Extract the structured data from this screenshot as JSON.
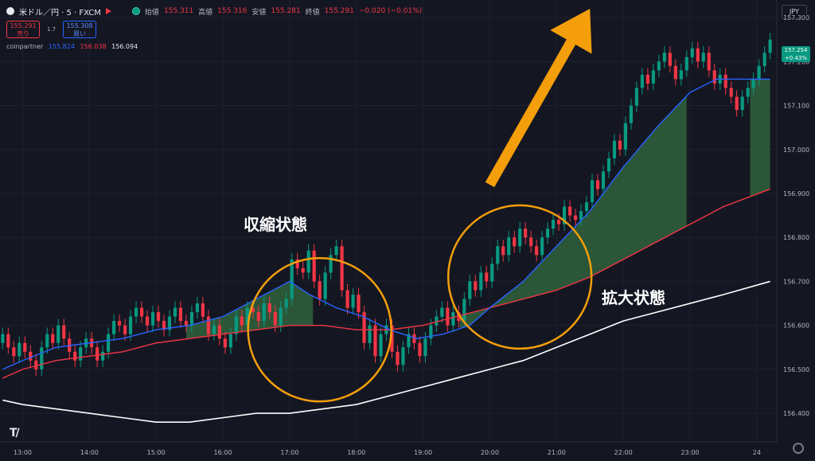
{
  "header": {
    "symbol": "米ドル／円 · 5 · FXCM",
    "open_label": "始値",
    "open": "155.311",
    "high_label": "高値",
    "high": "155.316",
    "low_label": "安値",
    "low": "155.281",
    "close_label": "終値",
    "close": "155.291",
    "change": "−0.020 (−0.01%)"
  },
  "trade": {
    "sell_price": "155.291",
    "sell_label": "売り",
    "spread": "1.7",
    "buy_price": "155.308",
    "buy_label": "買い"
  },
  "indicator": {
    "name": "coinpartner",
    "v1": "155.824",
    "v2": "156.038",
    "v3": "156.094"
  },
  "currency_button": "JPY",
  "last_price": {
    "value": "157.254",
    "change": "+0.43%"
  },
  "annotations": {
    "contraction": "収縮状態",
    "expansion": "拡大状態"
  },
  "colors": {
    "background": "#141722",
    "up": "#089981",
    "down": "#f23645",
    "ma_fast": "#2962ff",
    "ma_mid": "#f23645",
    "ma_slow": "#ffffff",
    "fill": "#2e5d3b",
    "highlight": "#f59e0b"
  },
  "icons": [
    "tradingview-logo-icon",
    "settings-icon",
    "status-dot-icon",
    "flag-icon",
    "arrow-up-icon"
  ],
  "chart_data": {
    "type": "candlestick",
    "y_ticks": [
      "157.300",
      "157.200",
      "157.100",
      "157.000",
      "156.900",
      "156.800",
      "156.700",
      "156.600",
      "156.500",
      "156.400"
    ],
    "ylim": [
      156.335,
      157.34
    ],
    "x_ticks": [
      "13:00",
      "14:00",
      "15:00",
      "16:00",
      "17:00",
      "18:00",
      "19:00",
      "20:00",
      "21:00",
      "22:00",
      "23:00",
      "24"
    ],
    "xlim": [
      12.66,
      24.3
    ],
    "candles_per_hour": 12,
    "start_hour": 12.7,
    "closes": [
      156.58,
      156.55,
      156.53,
      156.56,
      156.54,
      156.52,
      156.5,
      156.55,
      156.58,
      156.56,
      156.6,
      156.57,
      156.54,
      156.52,
      156.55,
      156.57,
      156.55,
      156.52,
      156.54,
      156.58,
      156.61,
      156.6,
      156.58,
      156.62,
      156.64,
      156.62,
      156.6,
      156.63,
      156.61,
      156.59,
      156.62,
      156.64,
      156.61,
      156.6,
      156.63,
      156.65,
      156.62,
      156.58,
      156.6,
      156.57,
      156.55,
      156.58,
      156.62,
      156.6,
      156.64,
      156.63,
      156.61,
      156.65,
      156.63,
      156.6,
      156.64,
      156.66,
      156.75,
      156.73,
      156.72,
      156.77,
      156.7,
      156.66,
      156.72,
      156.76,
      156.78,
      156.68,
      156.64,
      156.67,
      156.63,
      156.56,
      156.6,
      156.53,
      156.58,
      156.6,
      156.54,
      156.51,
      156.55,
      156.58,
      156.56,
      156.53,
      156.57,
      156.6,
      156.62,
      156.64,
      156.6,
      156.63,
      156.61,
      156.66,
      156.7,
      156.68,
      156.72,
      156.7,
      156.74,
      156.78,
      156.76,
      156.8,
      156.78,
      156.82,
      156.8,
      156.78,
      156.76,
      156.8,
      156.82,
      156.84,
      156.83,
      156.87,
      156.85,
      156.84,
      156.86,
      156.88,
      156.93,
      156.91,
      156.95,
      156.98,
      157.02,
      157.0,
      157.06,
      157.1,
      157.14,
      157.17,
      157.15,
      157.18,
      157.2,
      157.22,
      157.19,
      157.16,
      157.18,
      157.21,
      157.23,
      157.2,
      157.22,
      157.18,
      157.15,
      157.17,
      157.14,
      157.12,
      157.09,
      157.12,
      157.14,
      157.16,
      157.19,
      157.22,
      157.25
    ],
    "ma_fast": [
      [
        12.7,
        156.5
      ],
      [
        13.0,
        156.52
      ],
      [
        13.5,
        156.55
      ],
      [
        14.0,
        156.56
      ],
      [
        14.5,
        156.57
      ],
      [
        15.0,
        156.59
      ],
      [
        15.5,
        156.6
      ],
      [
        16.0,
        156.62
      ],
      [
        16.5,
        156.66
      ],
      [
        17.0,
        156.7
      ],
      [
        17.3,
        156.67
      ],
      [
        17.7,
        156.64
      ],
      [
        18.1,
        156.62
      ],
      [
        18.5,
        156.59
      ],
      [
        18.9,
        156.57
      ],
      [
        19.3,
        156.58
      ],
      [
        19.7,
        156.6
      ],
      [
        20.0,
        156.64
      ],
      [
        20.5,
        156.7
      ],
      [
        21.0,
        156.78
      ],
      [
        21.5,
        156.86
      ],
      [
        22.0,
        156.96
      ],
      [
        22.5,
        157.05
      ],
      [
        23.0,
        157.13
      ],
      [
        23.4,
        157.16
      ],
      [
        23.8,
        157.16
      ],
      [
        24.2,
        157.16
      ]
    ],
    "ma_mid": [
      [
        12.7,
        156.48
      ],
      [
        13.0,
        156.5
      ],
      [
        13.5,
        156.52
      ],
      [
        14.0,
        156.53
      ],
      [
        14.5,
        156.54
      ],
      [
        15.0,
        156.56
      ],
      [
        15.5,
        156.57
      ],
      [
        16.0,
        156.58
      ],
      [
        16.5,
        156.59
      ],
      [
        17.0,
        156.6
      ],
      [
        17.5,
        156.6
      ],
      [
        18.0,
        156.59
      ],
      [
        18.5,
        156.59
      ],
      [
        19.0,
        156.6
      ],
      [
        19.5,
        156.62
      ],
      [
        20.0,
        156.64
      ],
      [
        20.5,
        156.66
      ],
      [
        21.0,
        156.68
      ],
      [
        21.5,
        156.71
      ],
      [
        22.0,
        156.75
      ],
      [
        22.5,
        156.79
      ],
      [
        23.0,
        156.83
      ],
      [
        23.5,
        156.87
      ],
      [
        24.2,
        156.91
      ]
    ],
    "ma_slow": [
      [
        12.7,
        156.43
      ],
      [
        13.0,
        156.42
      ],
      [
        13.5,
        156.41
      ],
      [
        14.0,
        156.4
      ],
      [
        14.5,
        156.39
      ],
      [
        15.0,
        156.38
      ],
      [
        15.5,
        156.38
      ],
      [
        16.0,
        156.39
      ],
      [
        16.5,
        156.4
      ],
      [
        17.0,
        156.4
      ],
      [
        17.5,
        156.41
      ],
      [
        18.0,
        156.42
      ],
      [
        18.5,
        156.44
      ],
      [
        19.0,
        156.46
      ],
      [
        19.5,
        156.48
      ],
      [
        20.0,
        156.5
      ],
      [
        20.5,
        156.52
      ],
      [
        21.0,
        156.55
      ],
      [
        21.5,
        156.58
      ],
      [
        22.0,
        156.61
      ],
      [
        22.5,
        156.63
      ],
      [
        23.0,
        156.65
      ],
      [
        23.5,
        156.67
      ],
      [
        24.2,
        156.7
      ]
    ],
    "fill_ranges": [
      [
        15.45,
        16.3
      ],
      [
        16.3,
        17.35
      ],
      [
        19.55,
        22.95
      ],
      [
        23.9,
        24.2
      ]
    ],
    "circles": [
      {
        "x": 17.45,
        "y": 156.59,
        "label": "contraction"
      },
      {
        "x": 20.45,
        "y": 156.71,
        "label": "expansion"
      }
    ],
    "arrow": {
      "from": [
        20.0,
        156.92
      ],
      "to": [
        21.5,
        157.32
      ]
    }
  }
}
